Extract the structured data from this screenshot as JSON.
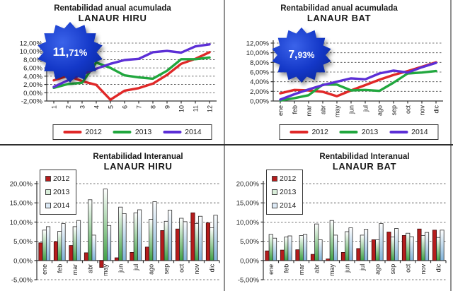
{
  "page": {
    "background": "#ffffff"
  },
  "chart_data": [
    {
      "type": "line",
      "title": "Rentabilidad anual acumulada",
      "subtitle": "LANAUR HIRU",
      "badge": "11,71%",
      "badge_color": "#1438c8",
      "legend_position": "bottom",
      "x_labels": [
        "1",
        "2",
        "3",
        "4",
        "5",
        "6",
        "7",
        "8",
        "9",
        "10",
        "11",
        "12"
      ],
      "ylim": [
        -2,
        12
      ],
      "grid": true,
      "yticks": [
        {
          "value": 12,
          "label": "12,00%"
        },
        {
          "value": 10,
          "label": "10,00%"
        },
        {
          "value": 8,
          "label": "8,00%"
        },
        {
          "value": 6,
          "label": "6,00%"
        },
        {
          "value": 4,
          "label": "4,00%"
        },
        {
          "value": 2,
          "label": "2,00%"
        },
        {
          "value": 0,
          "label": "0,00%"
        },
        {
          "value": -2,
          "label": "-2,00%"
        }
      ],
      "series": [
        {
          "name": "2012",
          "color": "#e02828",
          "values": [
            3.0,
            4.1,
            2.8,
            1.9,
            -1.7,
            0.5,
            1.1,
            2.2,
            4.3,
            7.0,
            8.2,
            9.8
          ]
        },
        {
          "name": "2013",
          "color": "#21a73e",
          "values": [
            1.2,
            2.1,
            2.4,
            7.3,
            6.0,
            4.2,
            3.7,
            3.4,
            5.3,
            8.1,
            8.1,
            8.5
          ]
        },
        {
          "name": "2014",
          "color": "#5c2fd6",
          "values": [
            1.4,
            3.0,
            4.4,
            5.8,
            7.0,
            7.9,
            8.2,
            9.8,
            10.1,
            9.7,
            11.2,
            11.7
          ]
        }
      ]
    },
    {
      "type": "line",
      "title": "Rentabilidad anual acumulada",
      "subtitle": "LANAUR BAT",
      "badge": "7,93%",
      "badge_color": "#1438c8",
      "legend_position": "bottom",
      "x_labels": [
        "ene",
        "feb",
        "mar",
        "abr",
        "may",
        "jun",
        "jul",
        "ago",
        "sep",
        "oct",
        "nov",
        "dic"
      ],
      "ylim": [
        0,
        12
      ],
      "grid": true,
      "yticks": [
        {
          "value": 12,
          "label": "12,00%"
        },
        {
          "value": 10,
          "label": "10,00%"
        },
        {
          "value": 8,
          "label": "8,00%"
        },
        {
          "value": 6,
          "label": "6,00%"
        },
        {
          "value": 4,
          "label": "4,00%"
        },
        {
          "value": 2,
          "label": "2,00%"
        },
        {
          "value": 0,
          "label": "0,00%"
        }
      ],
      "series": [
        {
          "name": "2012",
          "color": "#e02828",
          "values": [
            1.6,
            2.3,
            2.2,
            1.9,
            1.0,
            2.2,
            3.3,
            4.4,
            5.4,
            6.2,
            7.1,
            8.0
          ]
        },
        {
          "name": "2013",
          "color": "#21a73e",
          "values": [
            0.1,
            0.6,
            1.2,
            3.4,
            3.4,
            2.2,
            2.3,
            2.1,
            3.8,
            5.7,
            5.9,
            6.2
          ]
        },
        {
          "name": "2014",
          "color": "#5c2fd6",
          "values": [
            0.3,
            1.4,
            2.4,
            3.3,
            4.0,
            4.7,
            4.5,
            5.7,
            6.3,
            5.9,
            7.0,
            7.9
          ]
        }
      ]
    },
    {
      "type": "bar",
      "title": "Rentabilidad Interanual",
      "subtitle": "LANAUR HIRU",
      "legend_position": "top-left",
      "x_labels": [
        "ene",
        "feb",
        "mar",
        "abr",
        "may",
        "jun",
        "jul",
        "ago",
        "sep",
        "oct",
        "nov",
        "dic"
      ],
      "ylim": [
        -5,
        20
      ],
      "grid": true,
      "yticks": [
        {
          "value": 20,
          "label": "20,00%"
        },
        {
          "value": 15,
          "label": "15,00%"
        },
        {
          "value": 10,
          "label": "10,00%"
        },
        {
          "value": 5,
          "label": "5,00%"
        },
        {
          "value": 0,
          "label": "0,00%"
        },
        {
          "value": -5,
          "label": "-5,00%"
        }
      ],
      "series": [
        {
          "name": "2012",
          "color": "#b51c1c",
          "color_light": "#b51c1c",
          "values": [
            4.6,
            4.9,
            3.9,
            2.0,
            -1.8,
            0.7,
            2.1,
            3.5,
            7.8,
            8.2,
            12.4,
            9.8
          ]
        },
        {
          "name": "2013",
          "color": "#3fa045",
          "color_light": "#d9eeda",
          "values": [
            7.9,
            7.6,
            8.8,
            15.8,
            18.6,
            13.9,
            12.4,
            10.7,
            10.2,
            11.0,
            9.6,
            8.5
          ]
        },
        {
          "name": "2014",
          "color": "#7fb2d9",
          "color_light": "#ddeaf6",
          "values": [
            8.8,
            9.6,
            10.4,
            6.6,
            9.1,
            12.2,
            13.2,
            15.3,
            13.1,
            10.1,
            11.5,
            11.8
          ]
        }
      ]
    },
    {
      "type": "bar",
      "title": "Rentabilidad Interanual",
      "subtitle": "LANAUR BAT",
      "legend_position": "top-left",
      "x_labels": [
        "ene",
        "feb",
        "mar",
        "abr",
        "may",
        "jun",
        "jul",
        "ago",
        "sep",
        "oct",
        "nov",
        "dic"
      ],
      "ylim": [
        -5,
        20
      ],
      "grid": true,
      "yticks": [
        {
          "value": 20,
          "label": "20,00%"
        },
        {
          "value": 15,
          "label": "15,00%"
        },
        {
          "value": 10,
          "label": "10,00%"
        },
        {
          "value": 5,
          "label": "5,00%"
        },
        {
          "value": 0,
          "label": "0,00%"
        },
        {
          "value": -5,
          "label": "-5,00%"
        }
      ],
      "series": [
        {
          "name": "2012",
          "color": "#b51c1c",
          "color_light": "#b51c1c",
          "values": [
            2.5,
            2.7,
            2.8,
            1.6,
            0.4,
            2.1,
            3.1,
            5.4,
            7.4,
            6.5,
            8.2,
            7.9
          ]
        },
        {
          "name": "2013",
          "color": "#3fa045",
          "color_light": "#d9eeda",
          "values": [
            6.8,
            6.1,
            6.5,
            9.5,
            10.4,
            7.5,
            6.6,
            5.4,
            6.1,
            7.1,
            6.5,
            6.0
          ]
        },
        {
          "name": "2014",
          "color": "#7fb2d9",
          "color_light": "#ddeaf6",
          "values": [
            5.8,
            6.4,
            6.8,
            5.4,
            6.6,
            8.5,
            8.1,
            9.6,
            8.3,
            6.2,
            7.3,
            7.9
          ]
        }
      ]
    }
  ]
}
